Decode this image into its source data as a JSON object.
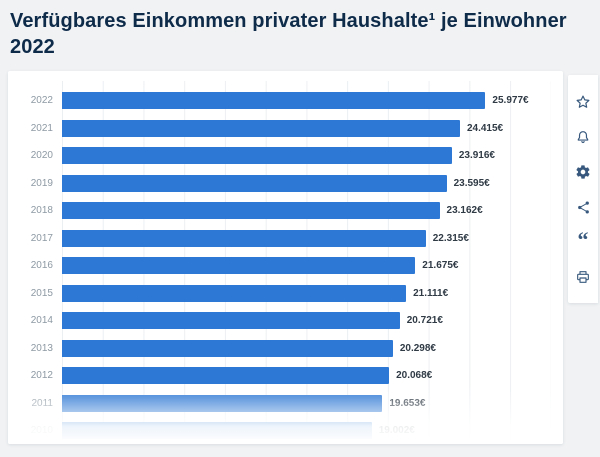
{
  "page": {
    "title": "Verfügbares Einkommen privater Haushalte¹ je Einwohner 2022"
  },
  "toolbar": {
    "icons": [
      "star-icon",
      "bell-icon",
      "gear-icon",
      "share-icon",
      "quote-icon",
      "print-icon"
    ]
  },
  "chart_data": {
    "type": "bar",
    "orientation": "horizontal",
    "title": "Verfügbares Einkommen privater Haushalte¹ je Einwohner 2022",
    "categories": [
      "2022",
      "2021",
      "2020",
      "2019",
      "2018",
      "2017",
      "2016",
      "2015",
      "2014",
      "2013",
      "2012",
      "2011",
      "2010"
    ],
    "values": [
      25977,
      24415,
      23916,
      23595,
      23162,
      22315,
      21675,
      21111,
      20721,
      20298,
      20068,
      19653,
      19002
    ],
    "value_labels": [
      "25.977€",
      "24.415€",
      "23.916€",
      "23.595€",
      "23.162€",
      "22.315€",
      "21.675€",
      "21.111€",
      "20.721€",
      "20.298€",
      "20.068€",
      "19.653€",
      "19.002€"
    ],
    "xlim": [
      0,
      30000
    ],
    "grid": "vertical",
    "bar_color": "#2d78d4",
    "legend_position": "none",
    "xlabel": "",
    "ylabel": ""
  }
}
